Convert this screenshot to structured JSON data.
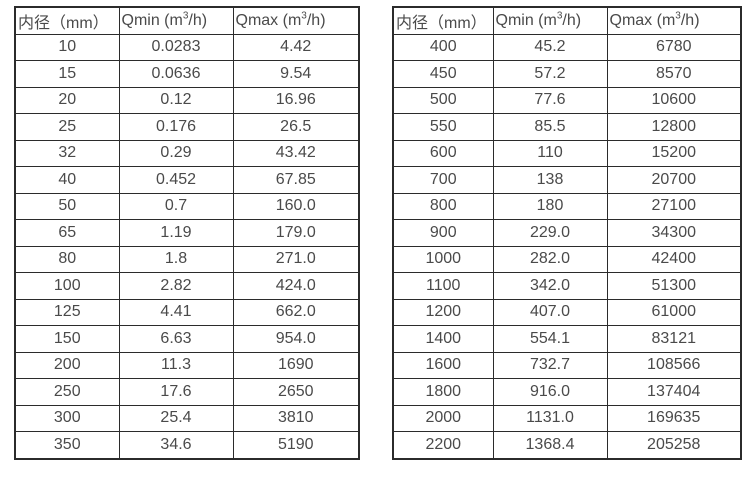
{
  "page": {
    "background_color": "#ffffff",
    "text_color": "#4a4a4a",
    "border_color": "#2b2b2b"
  },
  "tables": [
    {
      "name": "small-diameter-flow-table",
      "headers": {
        "diameter": "内径（mm）",
        "qmin_pre": "Qmin (m",
        "qmin_sup": "3",
        "qmin_post": "/h)",
        "qmax_pre": "Qmax (m",
        "qmax_sup": "3",
        "qmax_post": "/h)"
      },
      "rows": [
        [
          "10",
          "0.0283",
          "4.42"
        ],
        [
          "15",
          "0.0636",
          "9.54"
        ],
        [
          "20",
          "0.12",
          "16.96"
        ],
        [
          "25",
          "0.176",
          "26.5"
        ],
        [
          "32",
          "0.29",
          "43.42"
        ],
        [
          "40",
          "0.452",
          "67.85"
        ],
        [
          "50",
          "0.7",
          "160.0"
        ],
        [
          "65",
          "1.19",
          "179.0"
        ],
        [
          "80",
          "1.8",
          "271.0"
        ],
        [
          "100",
          "2.82",
          "424.0"
        ],
        [
          "125",
          "4.41",
          "662.0"
        ],
        [
          "150",
          "6.63",
          "954.0"
        ],
        [
          "200",
          "11.3",
          "1690"
        ],
        [
          "250",
          "17.6",
          "2650"
        ],
        [
          "300",
          "25.4",
          "3810"
        ],
        [
          "350",
          "34.6",
          "5190"
        ]
      ]
    },
    {
      "name": "large-diameter-flow-table",
      "headers": {
        "diameter": "内径（mm）",
        "qmin_pre": "Qmin (m",
        "qmin_sup": "3",
        "qmin_post": "/h)",
        "qmax_pre": "Qmax (m",
        "qmax_sup": "3",
        "qmax_post": "/h)"
      },
      "rows": [
        [
          "400",
          "45.2",
          "6780"
        ],
        [
          "450",
          "57.2",
          "8570"
        ],
        [
          "500",
          "77.6",
          "10600"
        ],
        [
          "550",
          "85.5",
          "12800"
        ],
        [
          "600",
          "110",
          "15200"
        ],
        [
          "700",
          "138",
          "20700"
        ],
        [
          "800",
          "180",
          "27100"
        ],
        [
          "900",
          "229.0",
          "34300"
        ],
        [
          "1000",
          "282.0",
          "42400"
        ],
        [
          "1100",
          "342.0",
          "51300"
        ],
        [
          "1200",
          "407.0",
          "61000"
        ],
        [
          "1400",
          "554.1",
          "83121"
        ],
        [
          "1600",
          "732.7",
          "108566"
        ],
        [
          "1800",
          "916.0",
          "137404"
        ],
        [
          "2000",
          "1131.0",
          "169635"
        ],
        [
          "2200",
          "1368.4",
          "205258"
        ]
      ]
    }
  ]
}
